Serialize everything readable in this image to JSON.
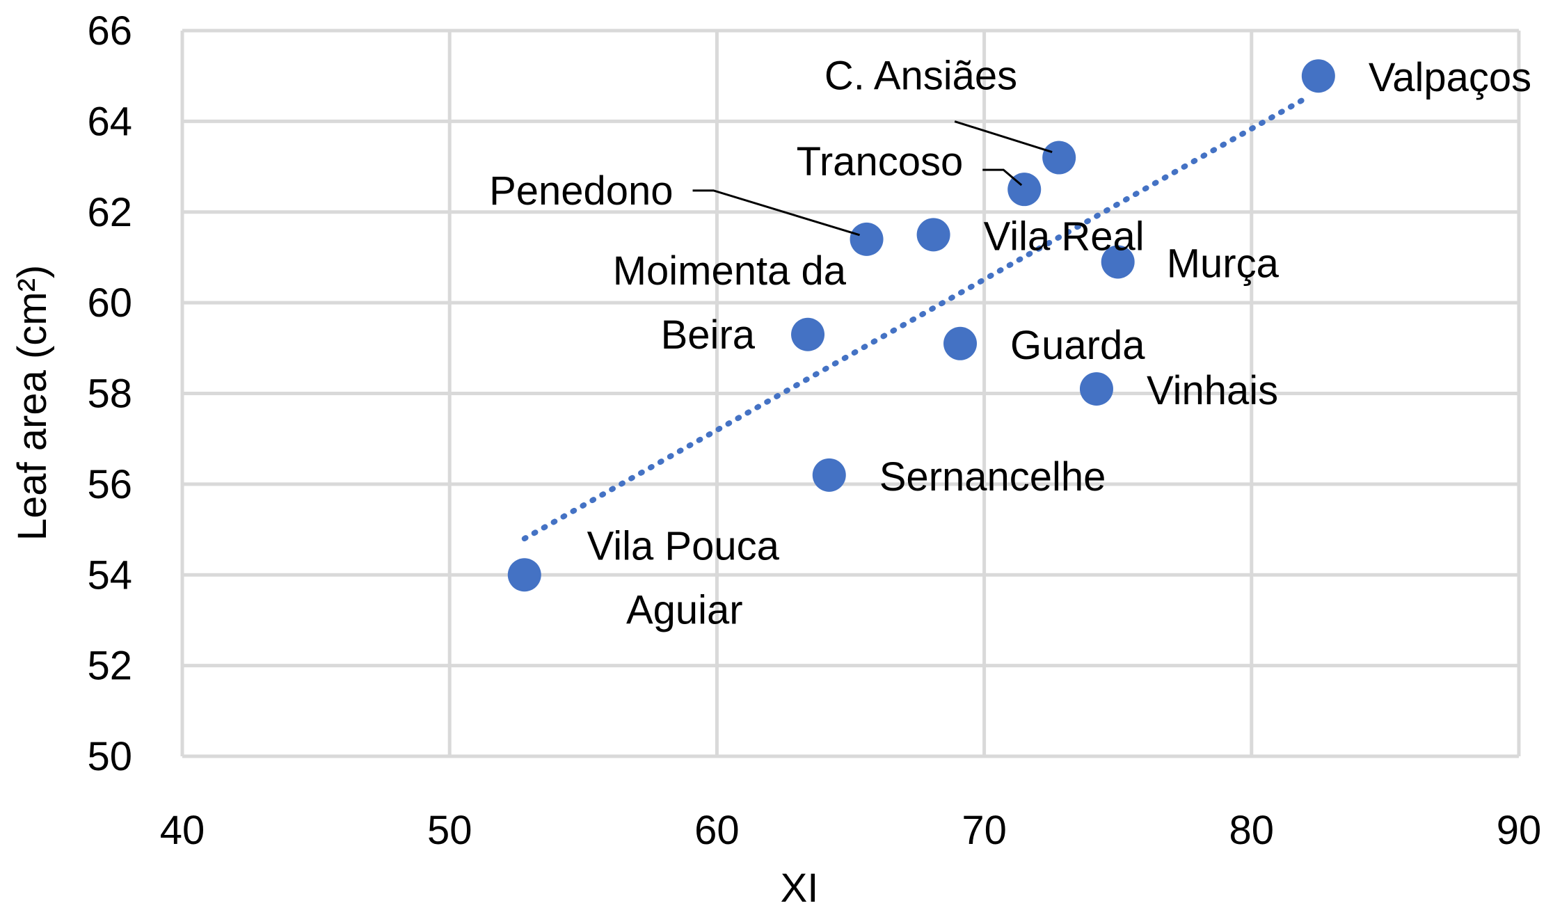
{
  "chart_data": {
    "type": "scatter",
    "xlabel": "XI",
    "ylabel": "Leaf area (cm²)",
    "xlim": [
      40,
      90
    ],
    "ylim": [
      50,
      66
    ],
    "x_ticks": [
      40,
      50,
      60,
      70,
      80,
      90
    ],
    "y_ticks": [
      50,
      52,
      54,
      56,
      58,
      60,
      62,
      64,
      66
    ],
    "grid": true,
    "legend": "none",
    "trendline": {
      "style": "dotted",
      "color": "#4472c4",
      "from": [
        52.8,
        54.8
      ],
      "to": [
        82.0,
        64.5
      ]
    },
    "point_color": "#4472c4",
    "points": [
      {
        "label": "Valpaços",
        "x": 82.5,
        "y": 65.0
      },
      {
        "label": "C. Ansiães",
        "x": 72.8,
        "y": 63.2
      },
      {
        "label": "Trancoso",
        "x": 71.5,
        "y": 62.5
      },
      {
        "label": "Penedono",
        "x": 65.6,
        "y": 61.4
      },
      {
        "label": "Vila Real",
        "x": 68.1,
        "y": 61.5
      },
      {
        "label": "Murça",
        "x": 75.0,
        "y": 60.9
      },
      {
        "label": "Moimenta da Beira",
        "x": 63.4,
        "y": 59.3
      },
      {
        "label": "Guarda",
        "x": 69.1,
        "y": 59.1
      },
      {
        "label": "Vinhais",
        "x": 74.2,
        "y": 58.1
      },
      {
        "label": "Sernancelhe",
        "x": 64.2,
        "y": 56.2
      },
      {
        "label": "Vila Pouca Aguiar",
        "x": 52.8,
        "y": 54.0
      }
    ]
  }
}
